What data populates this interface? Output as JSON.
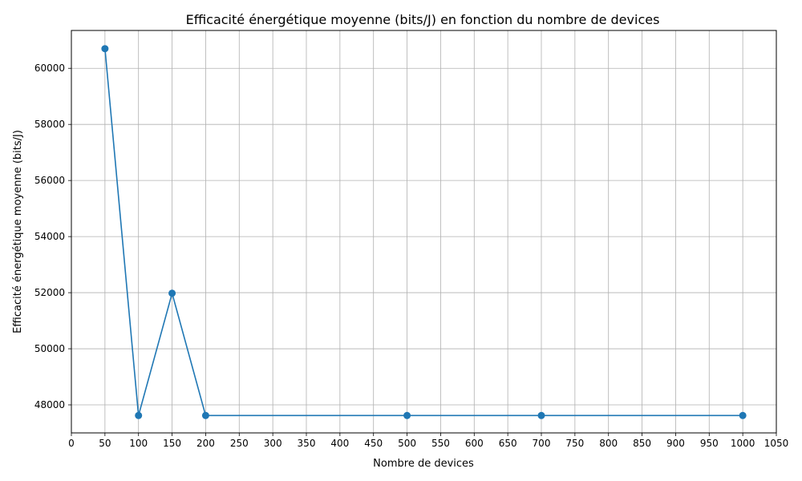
{
  "chart_data": {
    "type": "line",
    "title": "Efficacité énergétique moyenne (bits/J) en fonction du nombre de devices",
    "xlabel": "Nombre de devices",
    "ylabel": "Efficacité énergétique moyenne (bits/J)",
    "x": [
      50,
      100,
      150,
      200,
      500,
      700,
      1000
    ],
    "series": [
      {
        "values": [
          60700,
          47620,
          51980,
          47620,
          47620,
          47620,
          47620
        ]
      }
    ],
    "xlim": [
      0,
      1050
    ],
    "ylim": [
      47000,
      61350
    ],
    "xticks": [
      0,
      50,
      100,
      150,
      200,
      250,
      300,
      350,
      400,
      450,
      500,
      550,
      600,
      650,
      700,
      750,
      800,
      850,
      900,
      950,
      1000,
      1050
    ],
    "yticks": [
      48000,
      50000,
      52000,
      54000,
      56000,
      58000,
      60000
    ],
    "grid": true,
    "line_color": "#1f77b4",
    "marker": "circle"
  }
}
